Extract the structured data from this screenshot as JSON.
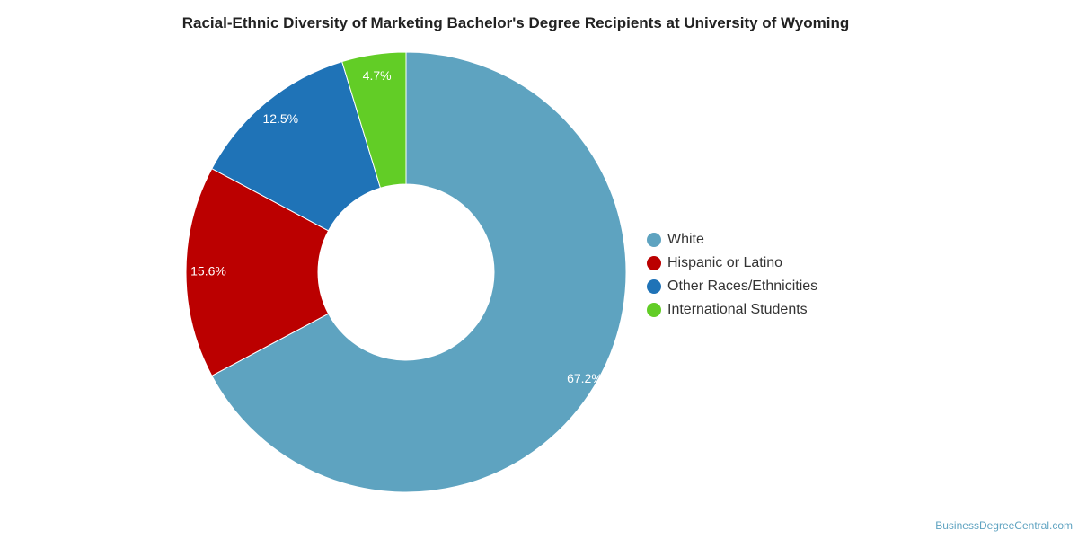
{
  "chart_data": {
    "type": "pie",
    "style": "donut",
    "title": "Racial-Ethnic Diversity of Marketing Bachelor's Degree Recipients at University of Wyoming",
    "categories": [
      "White",
      "Hispanic or Latino",
      "Other Races/Ethnicities",
      "International Students"
    ],
    "values": [
      67.2,
      15.6,
      12.5,
      4.7
    ],
    "labels": [
      "67.2%",
      "15.6%",
      "12.5%",
      "4.7%"
    ],
    "colors": [
      "#5ea3c0",
      "#bb0000",
      "#1f73b7",
      "#62cd26"
    ],
    "legend_position": "right"
  },
  "legend": {
    "items": [
      {
        "label": "White",
        "color": "#5ea3c0"
      },
      {
        "label": "Hispanic or Latino",
        "color": "#bb0000"
      },
      {
        "label": "Other Races/Ethnicities",
        "color": "#1f73b7"
      },
      {
        "label": "International Students",
        "color": "#62cd26"
      }
    ]
  },
  "footer": {
    "source": "BusinessDegreeCentral.com"
  }
}
